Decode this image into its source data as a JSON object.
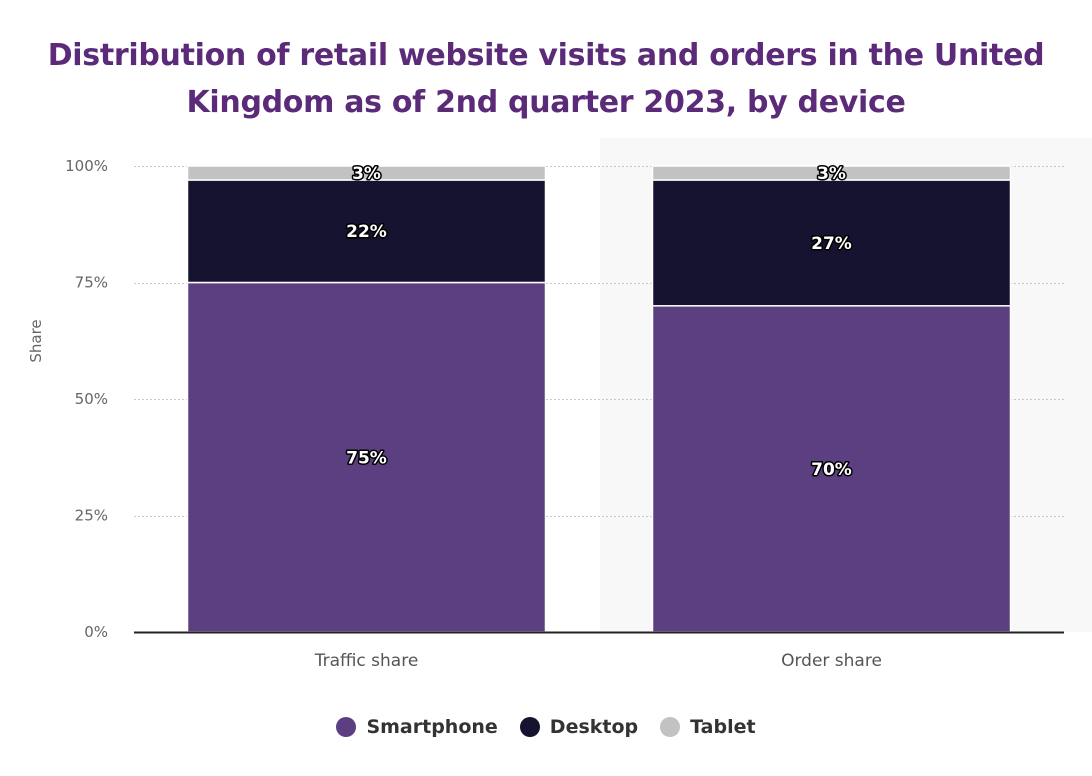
{
  "chart_data": {
    "type": "bar",
    "stacked": true,
    "title": "Distribution of retail website visits and orders in the United Kingdom as of 2nd quarter 2023, by device",
    "categories": [
      "Traffic share",
      "Order share"
    ],
    "series": [
      {
        "name": "Smartphone",
        "values": [
          75,
          70
        ],
        "labels": [
          "75%",
          "70%"
        ],
        "color": "#5b3f80"
      },
      {
        "name": "Desktop",
        "values": [
          22,
          27
        ],
        "labels": [
          "22%",
          "27%"
        ],
        "color": "#161330"
      },
      {
        "name": "Tablet",
        "values": [
          3,
          3
        ],
        "labels": [
          "3%",
          "3%"
        ],
        "color": "#c2c2c2"
      }
    ],
    "xlabel": "",
    "ylabel": "Share",
    "ylim": [
      0,
      100
    ],
    "yticks": [
      0,
      25,
      50,
      75,
      100
    ],
    "ytick_labels": [
      "0%",
      "25%",
      "50%",
      "75%",
      "100%"
    ],
    "grid": true,
    "legend_position": "bottom"
  },
  "colors": {
    "title": "#5b2a78",
    "grid": "#c8c8c8",
    "axis": "#222222",
    "highlight_band": "#f8f8f8"
  }
}
